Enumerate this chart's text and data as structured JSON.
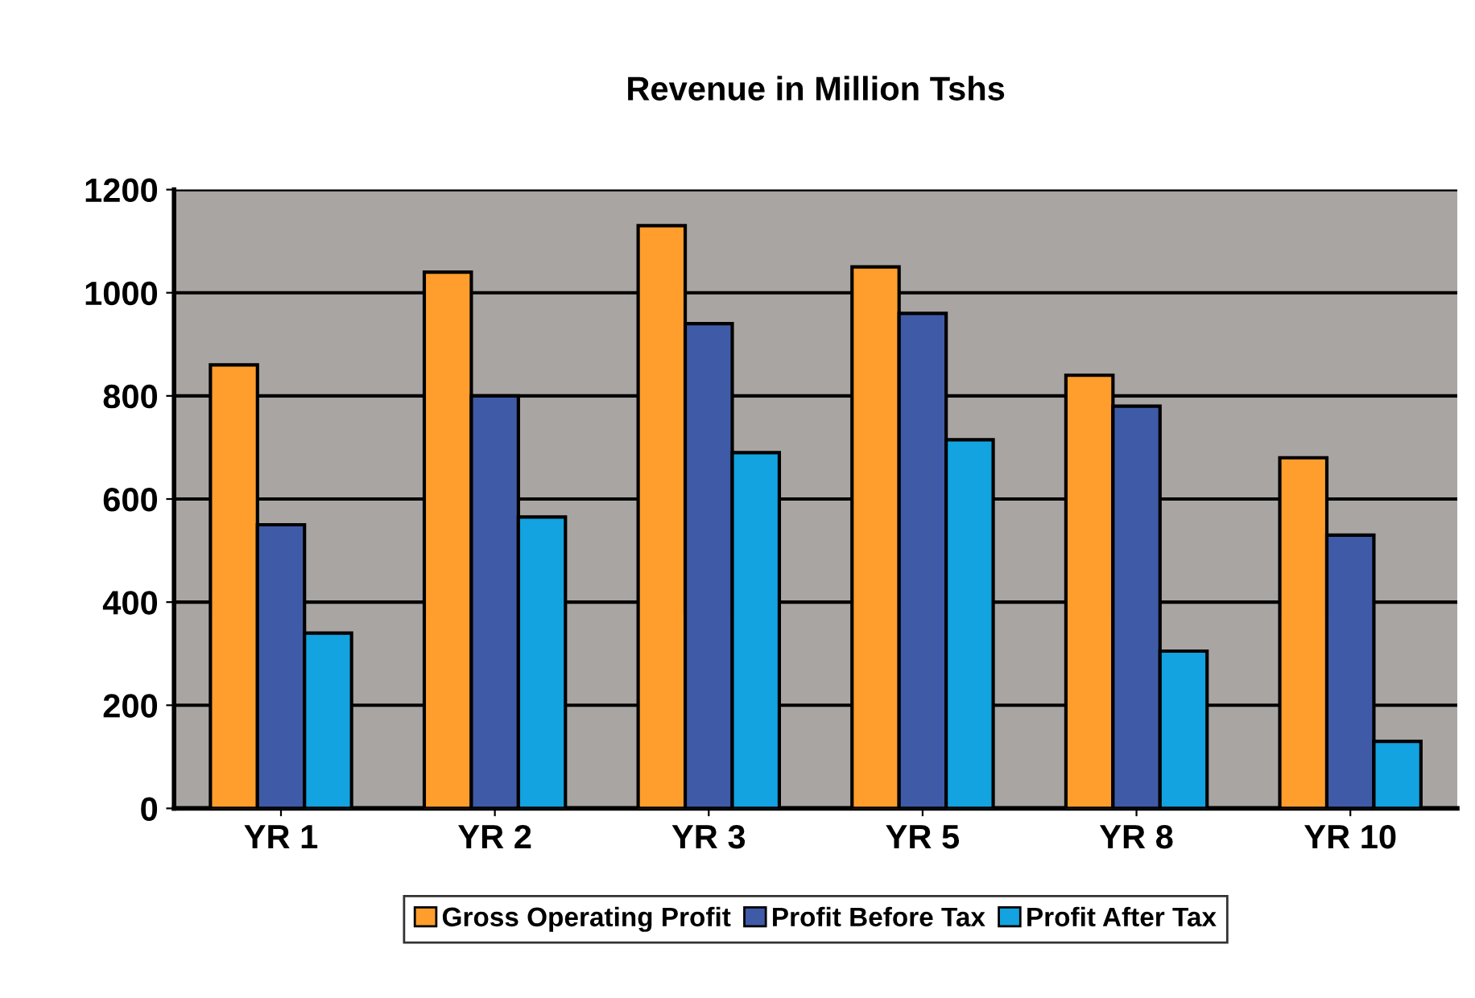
{
  "chart_data": {
    "type": "bar",
    "title": "Revenue in Million Tshs",
    "categories": [
      "YR 1",
      "YR 2",
      "YR 3",
      "YR 5",
      "YR 8",
      "YR 10"
    ],
    "series": [
      {
        "name": "Gross Operating Profit",
        "color": "#ff9e2c",
        "values": [
          860,
          1040,
          1130,
          1050,
          840,
          680
        ]
      },
      {
        "name": "Profit Before Tax",
        "color": "#3f5ba8",
        "values": [
          550,
          800,
          940,
          960,
          780,
          530
        ]
      },
      {
        "name": "Profit After Tax",
        "color": "#12a3e0",
        "values": [
          340,
          565,
          690,
          715,
          305,
          130
        ]
      }
    ],
    "ylim": [
      0,
      1200
    ],
    "yticks": [
      0,
      200,
      400,
      600,
      800,
      1000,
      1200
    ],
    "grid": "y",
    "legend": "bottom"
  }
}
